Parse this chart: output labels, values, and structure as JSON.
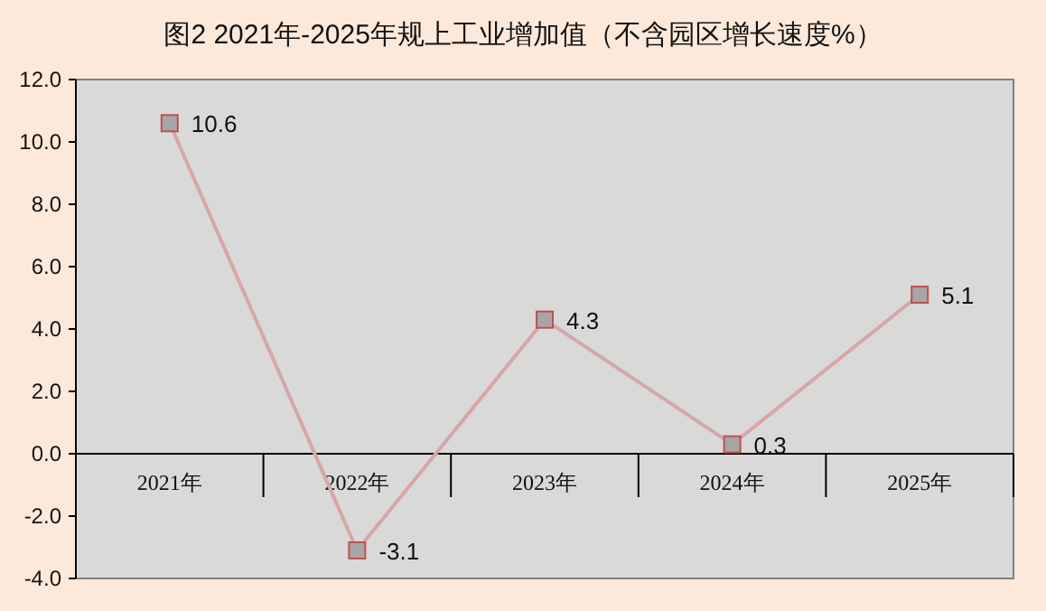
{
  "chart_data": {
    "type": "line",
    "title": "图2  2021年-2025年规上工业增加值（不含园区增长速度%）",
    "categories": [
      "2021年",
      "2022年",
      "2023年",
      "2024年",
      "2025年"
    ],
    "series": [
      {
        "color": "#d8a6a6",
        "values": [
          10.6,
          -3.1,
          4.3,
          0.3,
          5.1
        ]
      }
    ],
    "ylim": [
      -4,
      12
    ],
    "yticks": [
      {
        "value": -4,
        "label": "-4.0"
      },
      {
        "value": -2,
        "label": "-2.0"
      },
      {
        "value": 0,
        "label": "0.0"
      },
      {
        "value": 2,
        "label": "2.0"
      },
      {
        "value": 4,
        "label": "4.0"
      },
      {
        "value": 6,
        "label": "6.0"
      },
      {
        "value": 8,
        "label": "8.0"
      },
      {
        "value": 10,
        "label": "10.0"
      },
      {
        "value": 12,
        "label": "12.0"
      }
    ],
    "marker": "square",
    "data_labels": true,
    "grid": false
  }
}
